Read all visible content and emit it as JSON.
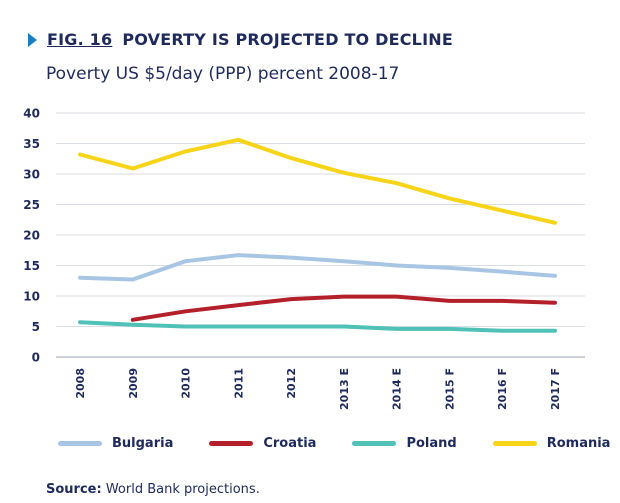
{
  "figure": {
    "number": "FIG. 16",
    "title": "POVERTY IS PROJECTED TO DECLINE",
    "subtitle": "Poverty US $5/day (PPP) percent 2008-17"
  },
  "source": {
    "label": "Source:",
    "text": "World Bank projections."
  },
  "chart_data": {
    "type": "line",
    "title": "POVERTY IS PROJECTED TO DECLINE",
    "subtitle": "Poverty US $5/day (PPP) percent 2008-17",
    "xlabel": "",
    "ylabel": "",
    "ylim": [
      0,
      40
    ],
    "yticks": [
      0,
      5,
      10,
      15,
      20,
      25,
      30,
      35,
      40
    ],
    "grid": true,
    "legend_position": "bottom",
    "categories": [
      "2008",
      "2009",
      "2010",
      "2011",
      "2012",
      "2013 E",
      "2014 E",
      "2015 F",
      "2016 F",
      "2017 F"
    ],
    "series": [
      {
        "name": "Bulgaria",
        "color": "#a9c5e4",
        "values": [
          13.0,
          12.7,
          15.7,
          16.7,
          16.3,
          15.7,
          15.0,
          14.6,
          14.0,
          13.3
        ]
      },
      {
        "name": "Croatia",
        "color": "#b3202a",
        "values": [
          null,
          6.1,
          7.5,
          8.5,
          9.5,
          9.9,
          9.9,
          9.2,
          9.2,
          8.9
        ]
      },
      {
        "name": "Poland",
        "color": "#4fc1b7",
        "values": [
          5.7,
          5.3,
          5.0,
          5.0,
          5.0,
          5.0,
          4.6,
          4.6,
          4.3,
          4.3
        ]
      },
      {
        "name": "Romania",
        "color": "#f7d417",
        "values": [
          33.2,
          30.9,
          33.7,
          35.6,
          32.6,
          30.2,
          28.5,
          26.0,
          24.0,
          22.0
        ]
      }
    ]
  }
}
